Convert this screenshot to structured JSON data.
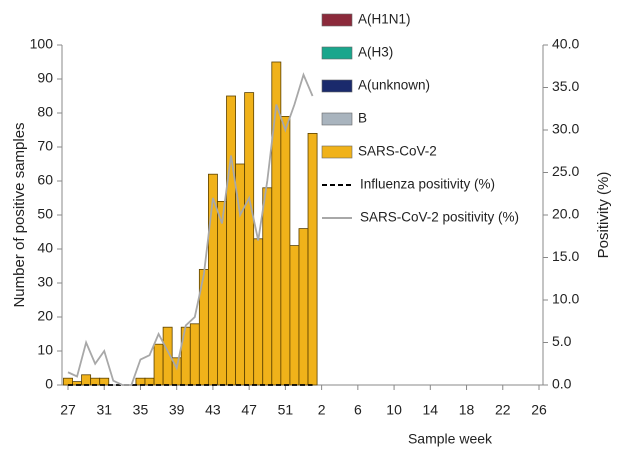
{
  "chart_data": {
    "type": "bar",
    "x_label": "Sample week",
    "y_label": "Number of positive samples",
    "y2_label": "Positivity (%)",
    "categories": [
      "27",
      null,
      null,
      null,
      "31",
      null,
      null,
      null,
      "35",
      null,
      null,
      null,
      "39",
      null,
      null,
      null,
      "43",
      null,
      null,
      null,
      "47",
      null,
      null,
      null,
      "51",
      null,
      null,
      null,
      "2",
      null,
      null,
      null,
      "6",
      null,
      null,
      null,
      "10",
      null,
      null,
      null,
      "14",
      null,
      null,
      null,
      "18",
      null,
      null,
      null,
      "22",
      null,
      null,
      null,
      "26"
    ],
    "ylim": [
      0,
      100
    ],
    "yticks": [
      0,
      10,
      20,
      30,
      40,
      50,
      60,
      70,
      80,
      90,
      100
    ],
    "y2lim": [
      0,
      40
    ],
    "y2ticks": [
      {
        "value": 0,
        "label": "0.0"
      },
      {
        "value": 5,
        "label": "5.0"
      },
      {
        "value": 10,
        "label": "10.0"
      },
      {
        "value": 15,
        "label": "15.0"
      },
      {
        "value": 20,
        "label": "20.0"
      },
      {
        "value": 25,
        "label": "25.0"
      },
      {
        "value": 30,
        "label": "30.0"
      },
      {
        "value": 35,
        "label": "35.0"
      },
      {
        "value": 40,
        "label": "40.0"
      }
    ],
    "series": [
      {
        "name": "A(H1N1)",
        "type": "bar",
        "color": "#8b2a3b",
        "values": [
          0,
          0,
          0,
          0,
          0,
          0,
          0,
          0,
          0,
          0,
          0,
          0,
          0,
          0,
          0,
          0,
          0,
          0,
          0,
          0,
          0,
          0,
          0,
          0,
          0,
          0,
          0,
          0,
          null,
          null,
          null,
          null,
          null,
          null,
          null,
          null,
          null,
          null,
          null,
          null,
          null,
          null,
          null,
          null,
          null,
          null,
          null,
          null,
          null,
          null,
          null,
          null,
          null
        ]
      },
      {
        "name": "A(H3)",
        "type": "bar",
        "color": "#1aa68c",
        "values": [
          0,
          0,
          0,
          0,
          0,
          0,
          0,
          0,
          0,
          0,
          0,
          0,
          0,
          0,
          0,
          0,
          0,
          0,
          0,
          0,
          0,
          0,
          0,
          0,
          0,
          0,
          0,
          0,
          null,
          null,
          null,
          null,
          null,
          null,
          null,
          null,
          null,
          null,
          null,
          null,
          null,
          null,
          null,
          null,
          null,
          null,
          null,
          null,
          null,
          null,
          null,
          null,
          null
        ]
      },
      {
        "name": "A(unknown)",
        "type": "bar",
        "color": "#1a2a6c",
        "values": [
          0,
          0,
          0,
          0,
          0,
          0,
          0,
          0,
          0,
          0,
          0,
          0,
          0,
          0,
          0,
          0,
          0,
          0,
          0,
          0,
          0,
          0,
          0,
          0,
          0,
          0,
          0,
          0,
          null,
          null,
          null,
          null,
          null,
          null,
          null,
          null,
          null,
          null,
          null,
          null,
          null,
          null,
          null,
          null,
          null,
          null,
          null,
          null,
          null,
          null,
          null,
          null,
          null
        ]
      },
      {
        "name": "B",
        "type": "bar",
        "color": "#a9b4be",
        "values": [
          0,
          0,
          0,
          0,
          0,
          0,
          0,
          0,
          0,
          0,
          0,
          0,
          0,
          0,
          0,
          0,
          0,
          0,
          0,
          0,
          0,
          0,
          0,
          0,
          0,
          0,
          0,
          0,
          null,
          null,
          null,
          null,
          null,
          null,
          null,
          null,
          null,
          null,
          null,
          null,
          null,
          null,
          null,
          null,
          null,
          null,
          null,
          null,
          null,
          null,
          null,
          null,
          null
        ]
      },
      {
        "name": "SARS-CoV-2",
        "type": "bar",
        "color": "#f0b21a",
        "values": [
          2,
          1,
          3,
          2,
          2,
          0,
          0,
          0,
          2,
          2,
          12,
          17,
          8,
          17,
          18,
          34,
          62,
          54,
          85,
          65,
          86,
          43,
          58,
          95,
          79,
          41,
          46,
          74,
          null,
          null,
          null,
          null,
          null,
          null,
          null,
          null,
          null,
          null,
          null,
          null,
          null,
          null,
          null,
          null,
          null,
          null,
          null,
          null,
          null,
          null,
          null,
          null,
          null
        ]
      },
      {
        "name": "Influenza positivity (%)",
        "type": "line",
        "axis": "y2",
        "dashed": true,
        "color": "#000000",
        "values": [
          0,
          0,
          0,
          0,
          0,
          0,
          0,
          0,
          0,
          0,
          0,
          0,
          0,
          0,
          0,
          0,
          0,
          0,
          0,
          0,
          0,
          0,
          0,
          0,
          0,
          0,
          0,
          0,
          null,
          null,
          null,
          null,
          null,
          null,
          null,
          null,
          null,
          null,
          null,
          null,
          null,
          null,
          null,
          null,
          null,
          null,
          null,
          null,
          null,
          null,
          null,
          null,
          null
        ]
      },
      {
        "name": "SARS-CoV-2 positivity (%)",
        "type": "line",
        "axis": "y2",
        "dashed": false,
        "color": "#a8a8a8",
        "values": [
          1.5,
          1,
          5,
          2.5,
          4,
          0.5,
          0,
          0,
          3,
          3.5,
          6,
          4,
          2,
          7,
          8,
          13,
          22,
          19,
          27,
          20,
          22,
          17,
          24,
          33,
          30,
          33,
          36.5,
          34,
          null,
          null,
          null,
          null,
          null,
          null,
          null,
          null,
          null,
          null,
          null,
          null,
          null,
          null,
          null,
          null,
          null,
          null,
          null,
          null,
          null,
          null,
          null,
          null,
          null
        ]
      }
    ]
  }
}
